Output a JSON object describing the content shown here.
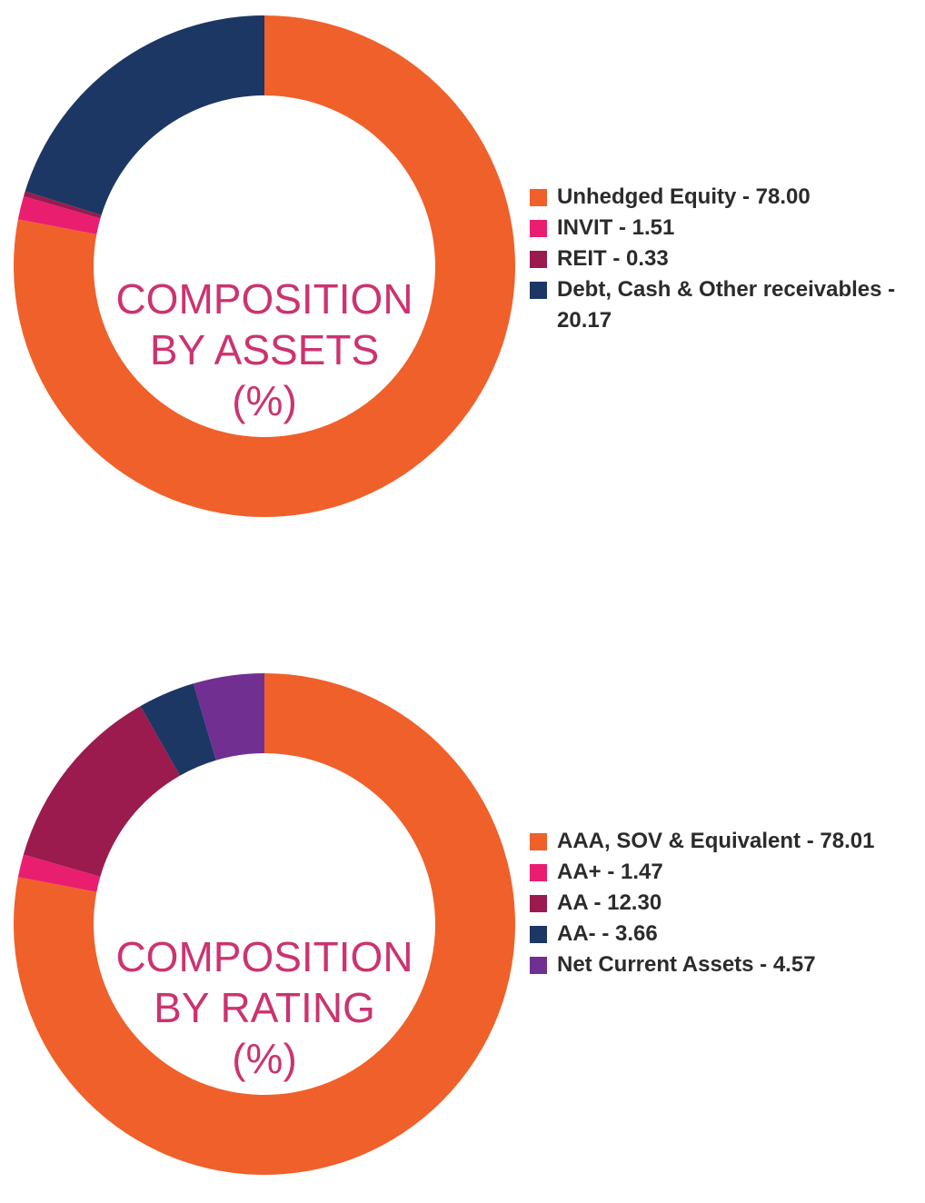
{
  "colors": {
    "orange": "#f0602a",
    "pink": "#ea1e6e",
    "maroon": "#9b1b4e",
    "navy": "#1c3763",
    "purple": "#712f92",
    "center_text": "#cc3370"
  },
  "chart_data": [
    {
      "type": "pie",
      "donut": true,
      "title": "COMPOSITION BY ASSETS (%)",
      "center_lines": [
        "COMPOSITION",
        "BY ASSETS",
        "(%)"
      ],
      "legend_position": "right",
      "slices": [
        {
          "label": "Unhedged Equity",
          "value": 78.0,
          "legend": "Unhedged Equity - 78.00",
          "color": "#f0602a"
        },
        {
          "label": "INVIT",
          "value": 1.51,
          "legend": "INVIT - 1.51",
          "color": "#ea1e6e"
        },
        {
          "label": "REIT",
          "value": 0.33,
          "legend": "REIT - 0.33",
          "color": "#9b1b4e"
        },
        {
          "label": "Debt, Cash & Other receivables",
          "value": 20.17,
          "legend": "Debt, Cash & Other receivables - 20.17",
          "color": "#1c3763"
        }
      ]
    },
    {
      "type": "pie",
      "donut": true,
      "title": "COMPOSITION BY RATING (%)",
      "center_lines": [
        "COMPOSITION",
        "BY RATING",
        "(%)"
      ],
      "legend_position": "right",
      "slices": [
        {
          "label": "AAA, SOV & Equivalent",
          "value": 78.01,
          "legend": "AAA, SOV & Equivalent - 78.01",
          "color": "#f0602a"
        },
        {
          "label": "AA+",
          "value": 1.47,
          "legend": "AA+ - 1.47",
          "color": "#ea1e6e"
        },
        {
          "label": "AA",
          "value": 12.3,
          "legend": "AA - 12.30",
          "color": "#9b1b4e"
        },
        {
          "label": "AA-",
          "value": 3.66,
          "legend": "AA- - 3.66",
          "color": "#1c3763"
        },
        {
          "label": "Net Current Assets",
          "value": 4.57,
          "legend": "Net Current Assets - 4.57",
          "color": "#712f92"
        }
      ]
    }
  ]
}
